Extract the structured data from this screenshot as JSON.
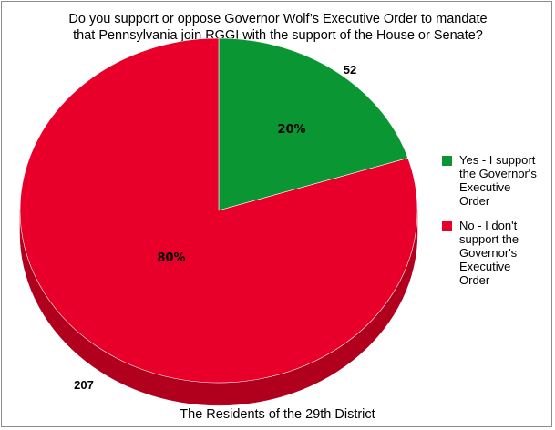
{
  "chart_data": {
    "type": "pie",
    "title_lines": [
      "Do you support or oppose Governor Wolf’s Executive Order to mandate",
      "that Pennsylvania join RGGI with the support of the House or Senate?"
    ],
    "xlabel": "The Residents of the 29th District",
    "slices": [
      {
        "label": "Yes - I support the Governor's Executive Order",
        "value": 52,
        "percent_label": "20%",
        "count_label": "52",
        "color": "#0a9632",
        "side_color": "#07722a"
      },
      {
        "label": "No - I don't support the Governor's Executive Order",
        "value": 207,
        "percent_label": "80%",
        "count_label": "207",
        "color": "#e8002a",
        "side_color": "#b0001e"
      }
    ],
    "legend_position": "right"
  }
}
